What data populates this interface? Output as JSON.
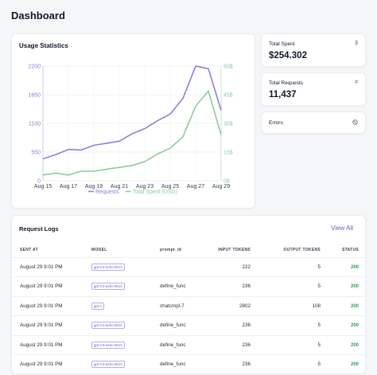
{
  "page": {
    "title": "Dashboard"
  },
  "usage": {
    "title": "Usage Statistics"
  },
  "stats": {
    "spent": {
      "label": "Total Spent",
      "value": "$254.302",
      "icon": "dollar-icon"
    },
    "requests": {
      "label": "Total Requests",
      "value": "11,437",
      "icon": "hash-icon"
    },
    "errors": {
      "label": "Errors",
      "icon": "block-icon"
    }
  },
  "chart_data": {
    "type": "line",
    "x": [
      "Aug 15",
      "Aug 16",
      "Aug 17",
      "Aug 18",
      "Aug 19",
      "Aug 20",
      "Aug 21",
      "Aug 22",
      "Aug 23",
      "Aug 24",
      "Aug 25",
      "Aug 26",
      "Aug 27",
      "Aug 28",
      "Aug 29"
    ],
    "x_tick_labels": [
      "Aug 15",
      "Aug 17",
      "Aug 19",
      "Aug 21",
      "Aug 23",
      "Aug 25",
      "Aug 27",
      "Aug 29"
    ],
    "series": [
      {
        "name": "Requests",
        "axis": "left",
        "color": "#8b80d8",
        "values": [
          420,
          500,
          600,
          590,
          680,
          720,
          760,
          900,
          1000,
          1150,
          1280,
          1580,
          2200,
          2150,
          1350
        ]
      },
      {
        "name": "Total Spent (USD)",
        "axis": "right",
        "color": "#8ccc9c",
        "values": [
          3,
          4,
          3,
          5,
          5,
          6,
          7,
          8,
          10,
          14,
          17,
          23,
          39,
          47,
          24
        ]
      }
    ],
    "y_left": {
      "ticks": [
        "0",
        "550",
        "1100",
        "1650",
        "2200"
      ],
      "lim": [
        0,
        2200
      ]
    },
    "y_right": {
      "ticks": [
        "0$",
        "15$",
        "30$",
        "45$",
        "60$"
      ],
      "lim": [
        0,
        60
      ]
    },
    "legend_position": "bottom",
    "grid": true
  },
  "logs": {
    "title": "Request Logs",
    "view_all": "View All",
    "columns": {
      "sent_at": "SENT AT",
      "model": "MODEL",
      "prompt_id": "prompt_id",
      "input_tokens": "INPUT TOKENS",
      "output_tokens": "OUTPUT TOKENS",
      "status": "STATUS"
    },
    "rows": [
      {
        "sent_at": "August 29 9:01 PM",
        "model": "gpt-3.5-turbo-0613",
        "prompt_id": "",
        "input_tokens": "222",
        "output_tokens": "5",
        "status": "200"
      },
      {
        "sent_at": "August 29 9:01 PM",
        "model": "gpt-3.5-turbo-0613",
        "prompt_id": "define_func",
        "input_tokens": "236",
        "output_tokens": "5",
        "status": "200"
      },
      {
        "sent_at": "August 29 9:01 PM",
        "model": "gpt-4",
        "prompt_id": "chatcmpl-7",
        "input_tokens": "2802",
        "output_tokens": "108",
        "status": "200"
      },
      {
        "sent_at": "August 29 9:01 PM",
        "model": "gpt-3.5-turbo-0613",
        "prompt_id": "define_func",
        "input_tokens": "236",
        "output_tokens": "5",
        "status": "200"
      },
      {
        "sent_at": "August 29 9:01 PM",
        "model": "gpt-3.5-turbo-0613",
        "prompt_id": "define_func",
        "input_tokens": "236",
        "output_tokens": "5",
        "status": "200"
      },
      {
        "sent_at": "August 29 9:01 PM",
        "model": "gpt-3.5-turbo-0613",
        "prompt_id": "define_func",
        "input_tokens": "236",
        "output_tokens": "5",
        "status": "200"
      }
    ]
  }
}
